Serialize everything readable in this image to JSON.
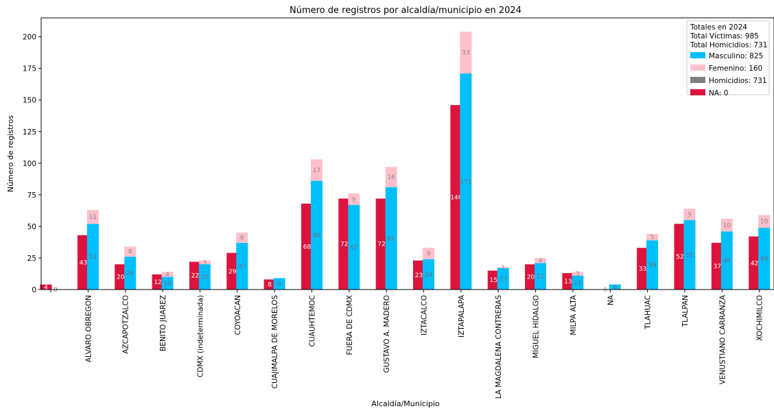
{
  "chart_data": {
    "type": "bar",
    "title": "Número de registros por alcaldía/municipio en 2024",
    "xlabel": "Alcaldía/Municipio",
    "ylabel": "Número de registros",
    "ylim": [
      0,
      215
    ],
    "yticks": [
      0,
      25,
      50,
      75,
      100,
      125,
      150,
      175,
      200
    ],
    "grid": false,
    "legend_placement": "top-right",
    "categories": [
      "",
      "ALVARO OBREGON",
      "AZCAPOTZALCO",
      "BENITO JUAREZ",
      "CDMX (indeterminada)",
      "COYOACAN",
      "CUAJIMALPA DE MORELOS",
      "CUAUHTEMOC",
      "FUERA DE CDMX",
      "GUSTAVO A. MADERO",
      "IZTACALCO",
      "IZTAPALAPA",
      "LA MAGDALENA CONTRERAS",
      "MIGUEL HIDALGO",
      "MILPA ALTA",
      "NA",
      "TLAHUAC",
      "TLALPAN",
      "VENUSTIANO CARRANZA",
      "XOCHIMILCO"
    ],
    "series": [
      {
        "name": "Homicidios",
        "color": "#dc143c",
        "values": [
          4,
          43,
          20,
          12,
          22,
          29,
          8,
          68,
          72,
          72,
          23,
          146,
          15,
          20,
          13,
          0,
          33,
          52,
          37,
          42
        ],
        "labels": [
          "4",
          "43",
          "20",
          "12",
          "22",
          "29",
          "8",
          "68",
          "72",
          "72",
          "23",
          "146",
          "15",
          "20",
          "13",
          "0",
          "33",
          "52",
          "37",
          "42"
        ]
      },
      {
        "name": "Masculino",
        "color": "#00bfff",
        "values": [
          0,
          52,
          26,
          10,
          20,
          37,
          9,
          86,
          67,
          81,
          24,
          171,
          17,
          21,
          11,
          4,
          39,
          55,
          46,
          49
        ],
        "labels": [
          "0",
          "52",
          "26",
          "10",
          "20",
          "37",
          "9",
          "86",
          "67",
          "81",
          "24",
          "171",
          "17",
          "21",
          "11",
          "4",
          "39",
          "55",
          "46",
          "49"
        ]
      },
      {
        "name": "Femenino",
        "color": "#ffc0cb",
        "values": [
          0,
          11,
          8,
          4,
          3,
          8,
          0,
          17,
          9,
          16,
          9,
          33,
          1,
          4,
          3,
          0,
          5,
          9,
          10,
          10
        ],
        "labels": [
          "",
          "11",
          "8",
          "4",
          "3",
          "8",
          "",
          "17",
          "9",
          "16",
          "9",
          "33",
          "1",
          "4",
          "3",
          "",
          "5",
          "9",
          "10",
          "10"
        ]
      }
    ],
    "legend": {
      "title_lines": [
        "Totales en 2024",
        "Total Víctimas: 985",
        "Total Homicidios: 731"
      ],
      "entries": [
        {
          "label": "Masculino: 825",
          "color": "#00bfff"
        },
        {
          "label": "Femenino: 160",
          "color": "#ffc0cb"
        },
        {
          "label": "Homicidios: 731",
          "color": "#808080"
        },
        {
          "label": "NA: 0",
          "color": "#dc143c"
        }
      ]
    }
  }
}
